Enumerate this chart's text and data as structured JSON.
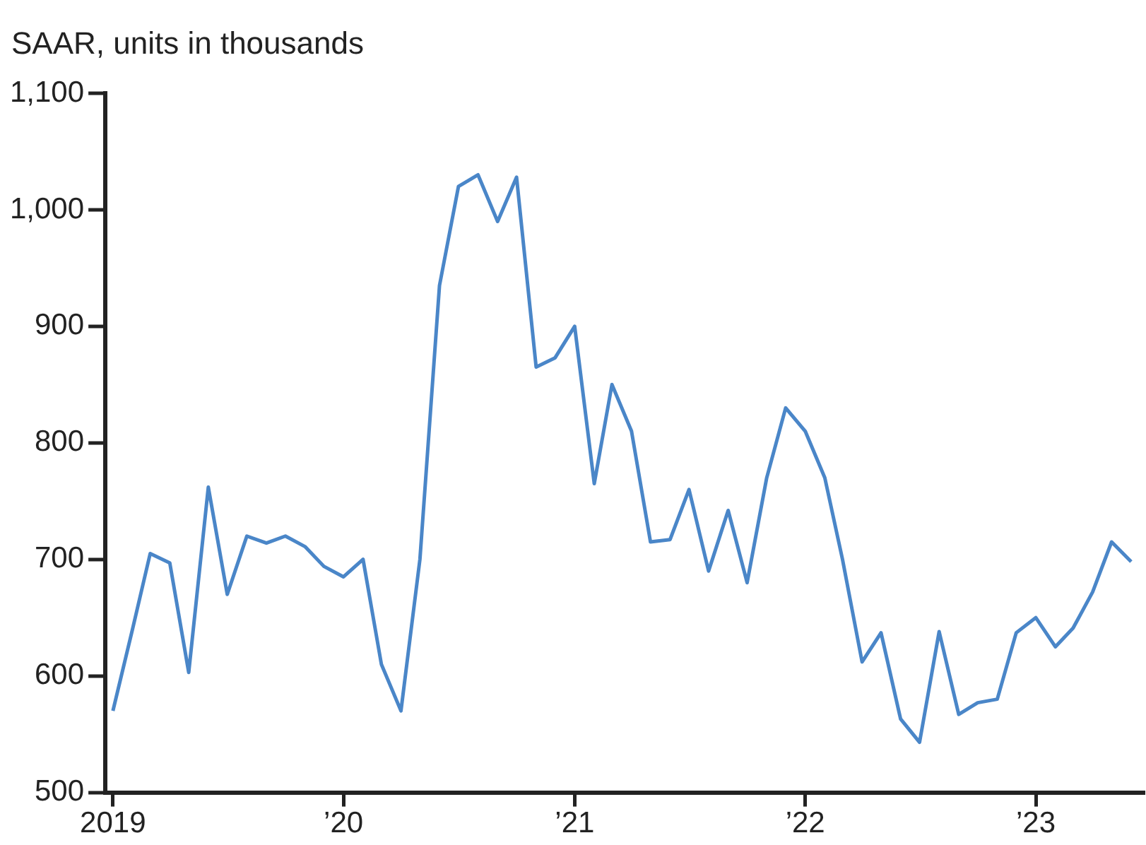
{
  "chart_data": {
    "type": "line",
    "title": "SAAR, units in thousands",
    "x": [
      "2019-01",
      "2019-02",
      "2019-03",
      "2019-04",
      "2019-05",
      "2019-06",
      "2019-07",
      "2019-08",
      "2019-09",
      "2019-10",
      "2019-11",
      "2019-12",
      "2020-01",
      "2020-02",
      "2020-03",
      "2020-04",
      "2020-05",
      "2020-06",
      "2020-07",
      "2020-08",
      "2020-09",
      "2020-10",
      "2020-11",
      "2020-12",
      "2021-01",
      "2021-02",
      "2021-03",
      "2021-04",
      "2021-05",
      "2021-06",
      "2021-07",
      "2021-08",
      "2021-09",
      "2021-10",
      "2021-11",
      "2021-12",
      "2022-01",
      "2022-02",
      "2022-03",
      "2022-04",
      "2022-05",
      "2022-06",
      "2022-07",
      "2022-08",
      "2022-09",
      "2022-10",
      "2022-11",
      "2022-12",
      "2023-01",
      "2023-02",
      "2023-03",
      "2023-04",
      "2023-05",
      "2023-06"
    ],
    "series": [
      {
        "color": "#4a86c8",
        "values": [
          570,
          640,
          705,
          697,
          603,
          762,
          670,
          720,
          714,
          720,
          711,
          694,
          685,
          700,
          610,
          570,
          700,
          935,
          1020,
          1030,
          990,
          1028,
          865,
          873,
          900,
          765,
          850,
          810,
          715,
          717,
          760,
          690,
          742,
          680,
          770,
          830,
          810,
          770,
          700,
          612,
          637,
          563,
          543,
          638,
          567,
          577,
          580,
          637,
          650,
          625,
          641,
          672,
          715,
          698
        ]
      }
    ],
    "xlim": [
      "2018-12-20",
      "2023-06-20"
    ],
    "xticks": [
      {
        "value": "2019-01-01",
        "label": "2019"
      },
      {
        "value": "2020-01-01",
        "label": "’20"
      },
      {
        "value": "2021-01-01",
        "label": "’21"
      },
      {
        "value": "2022-01-01",
        "label": "’22"
      },
      {
        "value": "2023-01-01",
        "label": "’23"
      }
    ],
    "ylim": [
      500,
      1100
    ],
    "yticks": [
      500,
      600,
      700,
      800,
      900,
      {
        "value": 1000,
        "label": "1,000"
      },
      {
        "value": 1100,
        "label": "1,100"
      }
    ],
    "grid": false,
    "legend": false,
    "marker": "none",
    "line_style": "solid"
  }
}
